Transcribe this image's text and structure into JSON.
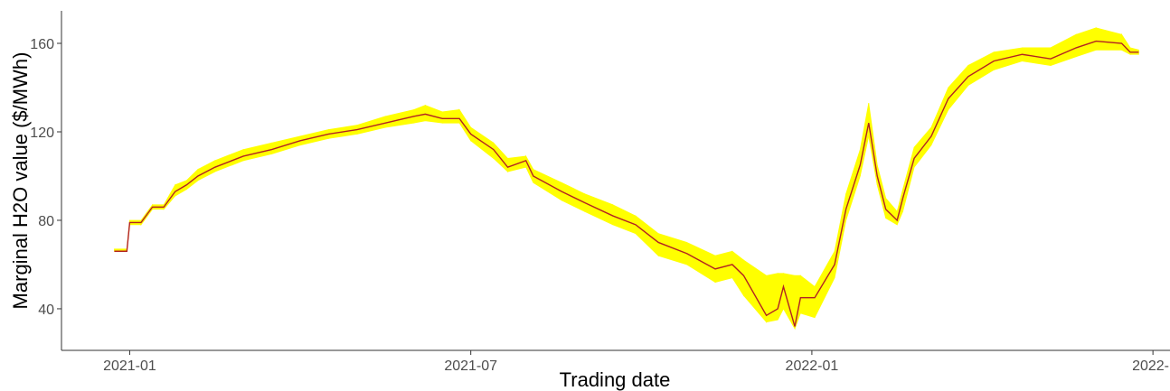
{
  "chart_data": {
    "type": "band-line",
    "x_label": "Trading date",
    "y_label": "Marginal H2O value ($/MWh)",
    "x": [
      -0.27,
      -0.05,
      0.0,
      0.2,
      0.4,
      0.6,
      0.8,
      1.0,
      1.2,
      1.5,
      1.8,
      2.0,
      2.5,
      3.0,
      3.5,
      4.0,
      4.5,
      5.0,
      5.2,
      5.5,
      5.8,
      6.0,
      6.4,
      6.65,
      6.97,
      7.1,
      7.6,
      8.0,
      8.5,
      8.9,
      9.3,
      9.8,
      10.3,
      10.6,
      10.8,
      11.2,
      11.4,
      11.5,
      11.7,
      11.8,
      12.05,
      12.4,
      12.6,
      12.85,
      13.0,
      13.15,
      13.3,
      13.5,
      13.6,
      13.8,
      14.1,
      14.4,
      14.75,
      15.2,
      15.7,
      16.2,
      16.65,
      17.0,
      17.45,
      17.6,
      17.75
    ],
    "band": {
      "color": "#ffff00",
      "lower": [
        66,
        66,
        78,
        78,
        85,
        85,
        91,
        94,
        98,
        102,
        105,
        107,
        110,
        114,
        117,
        119,
        122,
        124,
        125,
        124,
        124,
        116,
        108,
        102,
        104,
        97,
        89,
        84,
        78,
        74,
        64,
        60,
        52,
        54,
        46,
        34,
        35,
        40,
        31,
        38,
        36,
        54,
        80,
        100,
        118,
        96,
        81,
        78,
        84,
        104,
        114,
        130,
        141,
        148,
        152,
        150,
        154,
        157,
        157,
        155,
        155
      ],
      "upper": [
        67,
        67,
        80,
        80,
        87,
        87,
        96,
        98,
        103,
        107,
        110,
        112,
        115,
        118,
        121,
        123,
        127,
        130,
        132,
        129,
        130,
        122,
        115,
        108,
        109,
        103,
        97,
        92,
        87,
        82,
        74,
        70,
        64,
        66,
        62,
        55,
        56,
        56,
        55,
        55,
        50,
        66,
        92,
        112,
        133,
        105,
        90,
        84,
        94,
        113,
        122,
        140,
        150,
        156,
        158,
        158,
        164,
        167,
        164,
        158,
        157
      ]
    },
    "line": {
      "color": "#b22222",
      "values": [
        66,
        66,
        79,
        79,
        86,
        86,
        93,
        96,
        100,
        104,
        107,
        109,
        112,
        116,
        119,
        121,
        124,
        127,
        128,
        126,
        126,
        119,
        112,
        104,
        107,
        100,
        93,
        88,
        82,
        78,
        70,
        65,
        58,
        60,
        55,
        37,
        40,
        50,
        32,
        45,
        45,
        60,
        85,
        105,
        124,
        100,
        85,
        80,
        90,
        108,
        118,
        135,
        145,
        152,
        155,
        153,
        158,
        161,
        160,
        156,
        156
      ]
    },
    "xlim": [
      -1.2,
      18.3
    ],
    "xticks": [
      {
        "value": 0,
        "label": "2021-01"
      },
      {
        "value": 6,
        "label": "2021-07"
      },
      {
        "value": 12,
        "label": "2022-01"
      },
      {
        "value": 18,
        "label": "2022-"
      }
    ],
    "ylim": [
      21.2,
      174.7
    ],
    "yticks": [
      40,
      80,
      120,
      160
    ],
    "grid": false
  }
}
